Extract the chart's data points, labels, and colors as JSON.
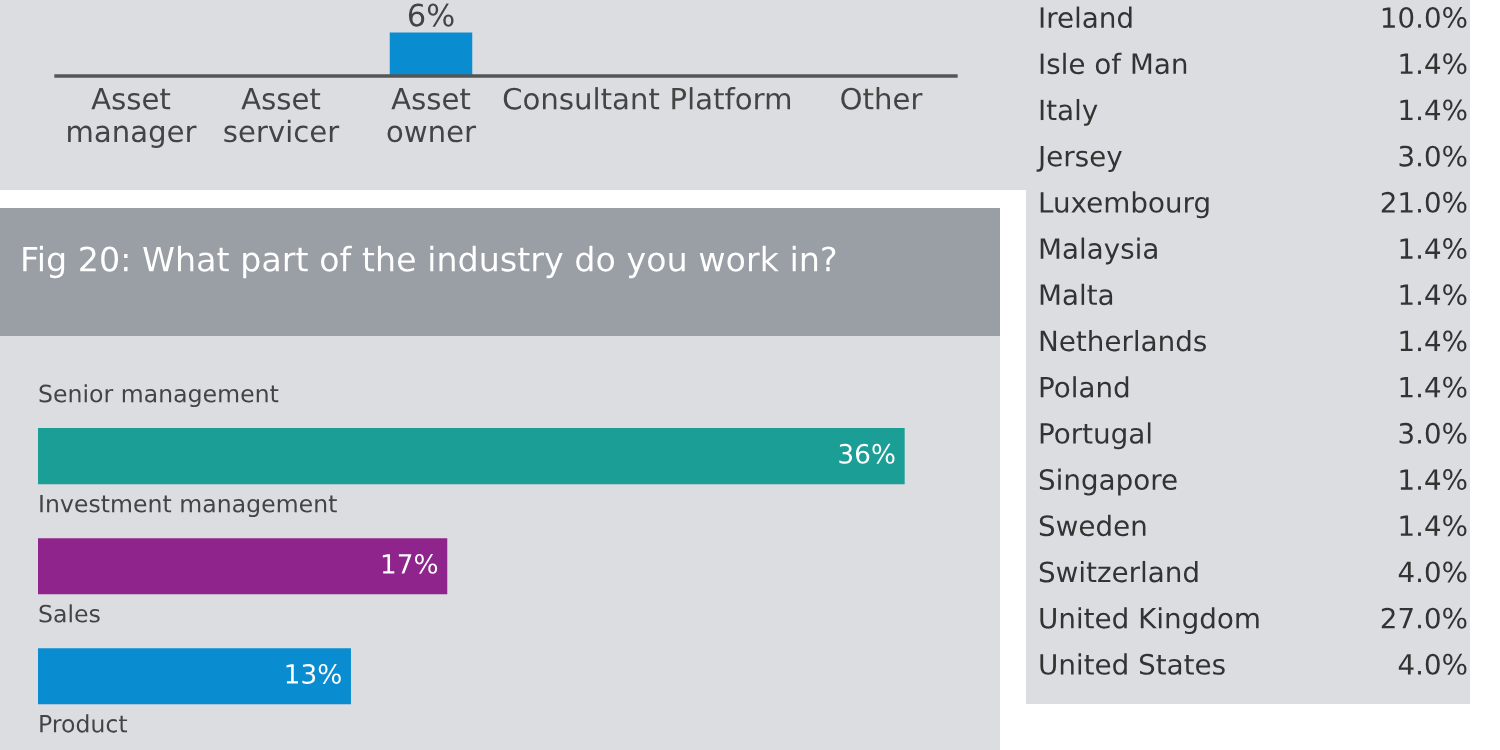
{
  "chart_data": [
    {
      "type": "bar",
      "categories": [
        "Asset\nmanager",
        "Asset\nservicer",
        "Asset\nowner",
        "Consultant",
        "Platform",
        "Other"
      ],
      "values": [
        null,
        null,
        6,
        null,
        null,
        null
      ],
      "colors": [
        "#1a9e96",
        "#8e248c",
        "#0a8dd0",
        "#51308f",
        "#1a9e96",
        "#f5964a"
      ],
      "value_labels": [
        null,
        null,
        "6%",
        null,
        null,
        null
      ],
      "grid": false,
      "legend": false
    },
    {
      "type": "bar",
      "orientation": "horizontal",
      "title": "Fig 20: What part of the industry do you work in?",
      "categories": [
        "Senior management",
        "Investment management",
        "Sales",
        "Product"
      ],
      "values": [
        36,
        17,
        13,
        null
      ],
      "colors": [
        "#1a9e96",
        "#8e248c",
        "#0a8dd0",
        "#51308f"
      ],
      "value_labels": [
        "36%",
        "17%",
        "13%",
        null
      ],
      "grid": false,
      "legend": false
    },
    {
      "type": "other",
      "categories": [
        "Ireland",
        "Isle of Man",
        "Italy",
        "Jersey",
        "Luxembourg",
        "Malaysia",
        "Malta",
        "Netherlands",
        "Poland",
        "Portugal",
        "Singapore",
        "Sweden",
        "Switzerland",
        "United Kingdom",
        "United States"
      ],
      "value_labels": [
        "10.0%",
        "1.4%",
        "1.4%",
        "3.0%",
        "21.0%",
        "1.4%",
        "1.4%",
        "1.4%",
        "1.4%",
        "3.0%",
        "1.4%",
        "1.4%",
        "4.0%",
        "27.0%",
        "4.0%"
      ]
    }
  ]
}
